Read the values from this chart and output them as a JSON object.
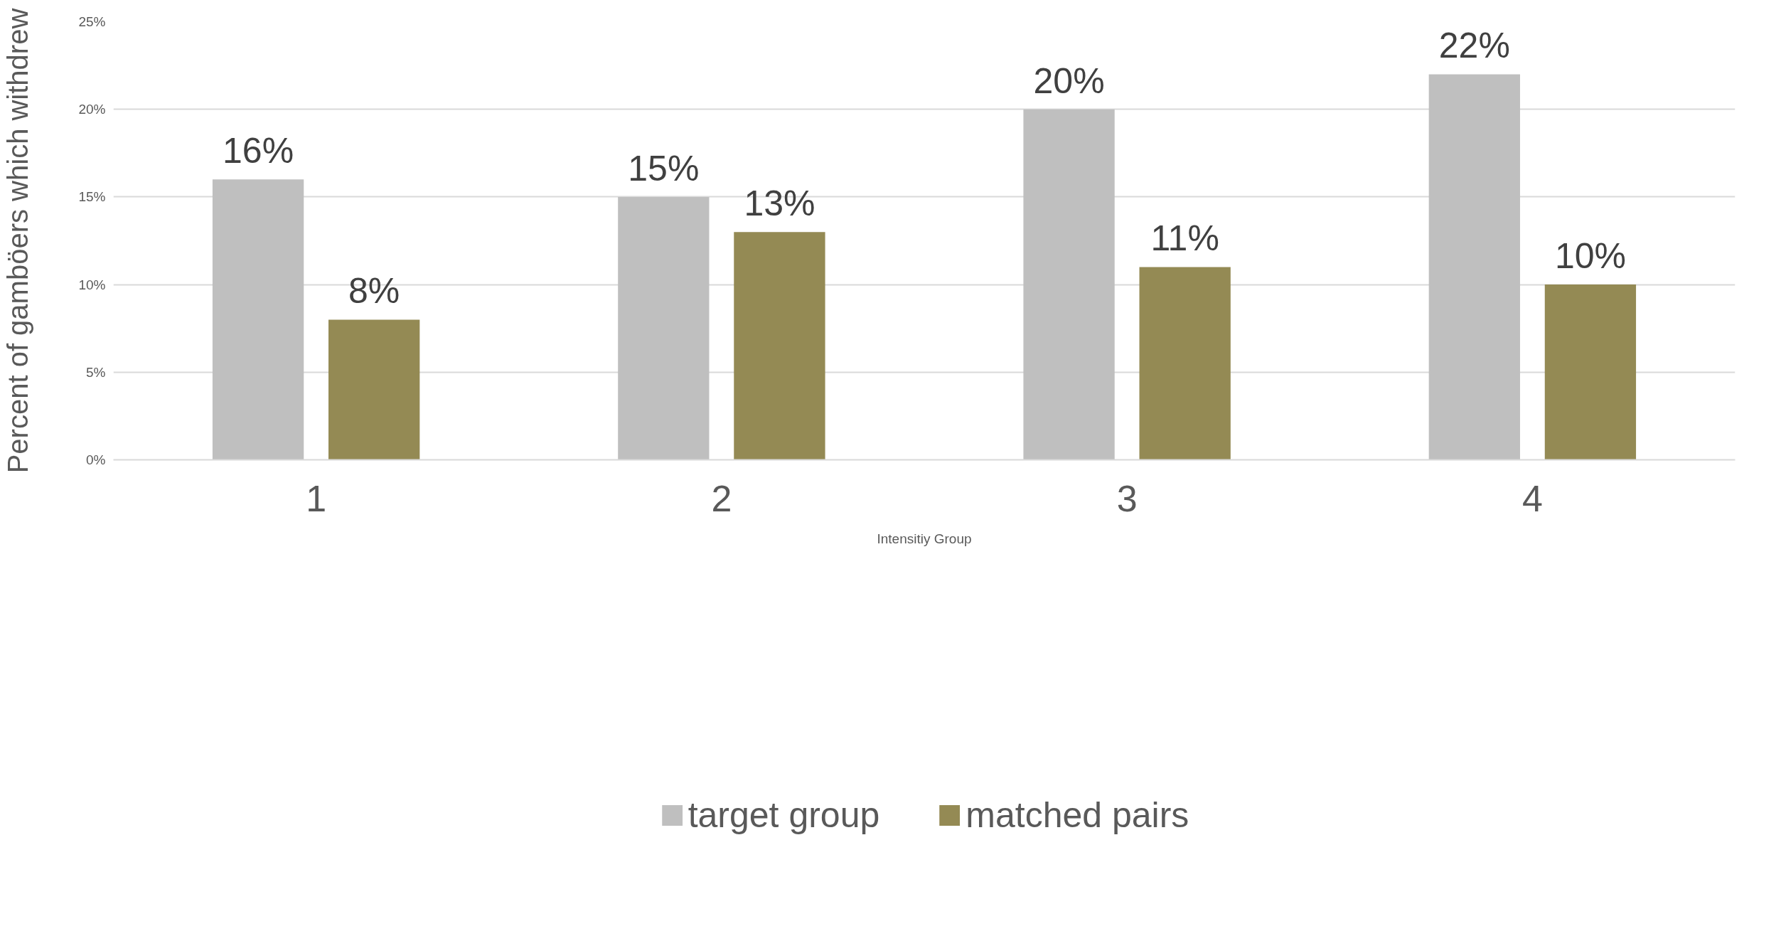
{
  "chart_data": {
    "type": "bar",
    "xlabel": "Intensitiy Group",
    "ylabel": "Percent of gamböers which withdrew",
    "categories": [
      "1",
      "2",
      "3",
      "4"
    ],
    "series": [
      {
        "name": "target group",
        "color": "#bfbfbf",
        "values": [
          16,
          15,
          20,
          22
        ],
        "value_labels": [
          "16%",
          "15%",
          "20%",
          "22%"
        ]
      },
      {
        "name": "matched pairs",
        "color": "#948a54",
        "values": [
          8,
          13,
          11,
          10
        ],
        "value_labels": [
          "8%",
          "13%",
          "11%",
          "10%"
        ]
      }
    ],
    "ylim": [
      0,
      25
    ],
    "yticks": [
      {
        "value": 0,
        "label": "0%"
      },
      {
        "value": 5,
        "label": "5%"
      },
      {
        "value": 10,
        "label": "10%"
      },
      {
        "value": 15,
        "label": "15%"
      },
      {
        "value": 20,
        "label": "20%"
      },
      {
        "value": 25,
        "label": "25%"
      }
    ],
    "grid": "y",
    "legend": "bottom"
  }
}
